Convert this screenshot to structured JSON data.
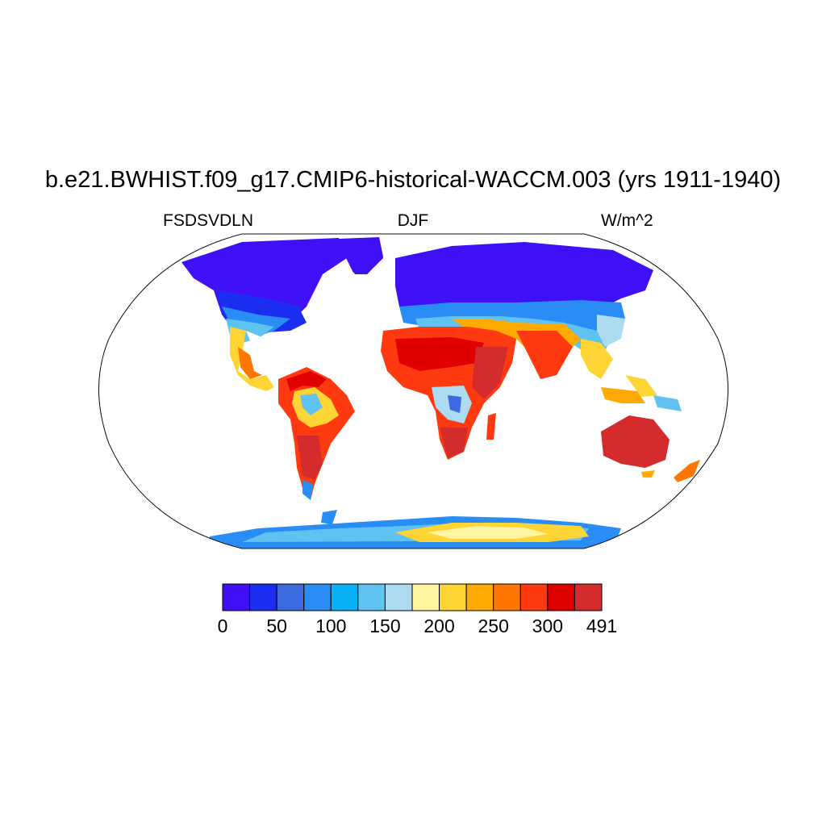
{
  "title": "b.e21.BWHIST.f09_g17.CMIP6-historical-WACCM.003 (yrs 1911-1940)",
  "left_label": "FSDSVDLN",
  "center_label": "DJF",
  "right_label": "W/m^2",
  "colorbar": {
    "colors": [
      "#3f0ff5",
      "#1b2ef0",
      "#3c6ae0",
      "#2a8cf5",
      "#0ab0f5",
      "#60c2f0",
      "#addcf2",
      "#fff5a0",
      "#ffd535",
      "#ffaa00",
      "#ff7700",
      "#ff3a10",
      "#e00000",
      "#d42c2c"
    ],
    "tick_labels": [
      "0",
      "50",
      "100",
      "150",
      "200",
      "250",
      "300",
      "491"
    ]
  },
  "chart_data": {
    "type": "heatmap",
    "variable": "FSDSVDLN",
    "season": "DJF",
    "units": "W/m^2",
    "levels": [
      0,
      25,
      50,
      75,
      100,
      125,
      150,
      175,
      200,
      225,
      250,
      275,
      300,
      325,
      491
    ]
  }
}
